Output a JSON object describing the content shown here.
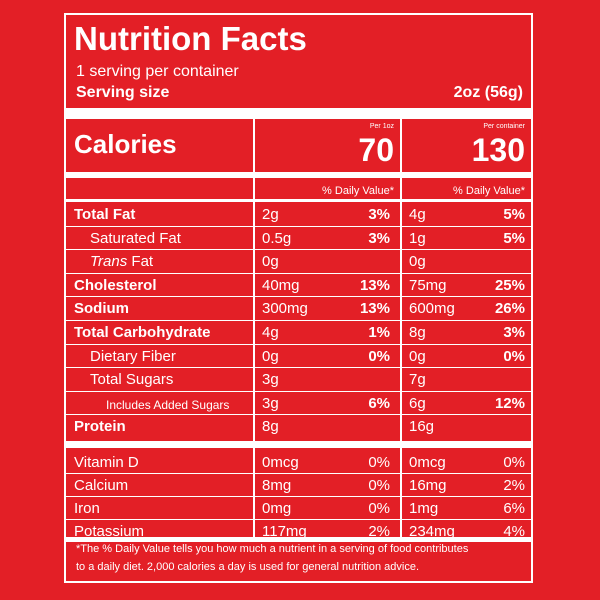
{
  "title": "Nutrition Facts",
  "servings_per_container": "1 serving per container",
  "serving_size_label": "Serving size",
  "serving_size_value": "2oz (56g)",
  "calories_label": "Calories",
  "columns": [
    {
      "header": "Per 1oz",
      "calories": "70"
    },
    {
      "header": "Per container",
      "calories": "130"
    }
  ],
  "daily_value_header": "% Daily Value*",
  "nutrients": [
    {
      "name_parts": [
        "Total Fat"
      ],
      "bold": true,
      "indent": false,
      "small": false,
      "col1_amt": "2g",
      "col1_pct": "3%",
      "col2_amt": "4g",
      "col2_pct": "5%"
    },
    {
      "name_parts": [
        "Saturated Fat"
      ],
      "bold": false,
      "indent": true,
      "small": false,
      "col1_amt": "0.5g",
      "col1_pct": "3%",
      "col2_amt": "1g",
      "col2_pct": "5%"
    },
    {
      "name_parts": [
        "Trans",
        " Fat"
      ],
      "bold": false,
      "indent": true,
      "small": false,
      "italic_first": true,
      "col1_amt": "0g",
      "col1_pct": "",
      "col2_amt": "0g",
      "col2_pct": ""
    },
    {
      "name_parts": [
        "Cholesterol"
      ],
      "bold": true,
      "indent": false,
      "small": false,
      "col1_amt": "40mg",
      "col1_pct": "13%",
      "col2_amt": "75mg",
      "col2_pct": "25%"
    },
    {
      "name_parts": [
        "Sodium"
      ],
      "bold": true,
      "indent": false,
      "small": false,
      "col1_amt": "300mg",
      "col1_pct": "13%",
      "col2_amt": "600mg",
      "col2_pct": "26%"
    },
    {
      "name_parts": [
        "Total Carbohydrate"
      ],
      "bold": true,
      "indent": false,
      "small": false,
      "col1_amt": "4g",
      "col1_pct": "1%",
      "col2_amt": "8g",
      "col2_pct": "3%"
    },
    {
      "name_parts": [
        "Dietary Fiber"
      ],
      "bold": false,
      "indent": true,
      "small": false,
      "col1_amt": "0g",
      "col1_pct": "0%",
      "col2_amt": "0g",
      "col2_pct": "0%"
    },
    {
      "name_parts": [
        "Total Sugars"
      ],
      "bold": false,
      "indent": true,
      "small": false,
      "col1_amt": "3g",
      "col1_pct": "",
      "col2_amt": "7g",
      "col2_pct": ""
    },
    {
      "name_parts": [
        "Includes Added Sugars"
      ],
      "bold": false,
      "indent": "deep",
      "small": true,
      "col1_amt": "3g",
      "col1_pct": "6%",
      "col2_amt": "6g",
      "col2_pct": "12%"
    },
    {
      "name_parts": [
        "Protein"
      ],
      "bold": true,
      "indent": false,
      "small": false,
      "col1_amt": "8g",
      "col1_pct": "",
      "col2_amt": "16g",
      "col2_pct": ""
    }
  ],
  "vitamins": [
    {
      "name": "Vitamin D",
      "col1_amt": "0mcg",
      "col1_pct": "0%",
      "col2_amt": "0mcg",
      "col2_pct": "0%"
    },
    {
      "name": "Calcium",
      "col1_amt": "8mg",
      "col1_pct": "0%",
      "col2_amt": "16mg",
      "col2_pct": "2%"
    },
    {
      "name": "Iron",
      "col1_amt": "0mg",
      "col1_pct": "0%",
      "col2_amt": "1mg",
      "col2_pct": "6%"
    },
    {
      "name": "Potassium",
      "col1_amt": "117mg",
      "col1_pct": "2%",
      "col2_amt": "234mg",
      "col2_pct": "4%"
    }
  ],
  "footnote_lines": [
    "*The % Daily Value tells you how much a nutrient in a serving of food contributes",
    "to a daily diet. 2,000 calories a day is used for general nutrition advice."
  ],
  "colors": {
    "background": "#e31f26",
    "foreground": "#ffffff"
  }
}
